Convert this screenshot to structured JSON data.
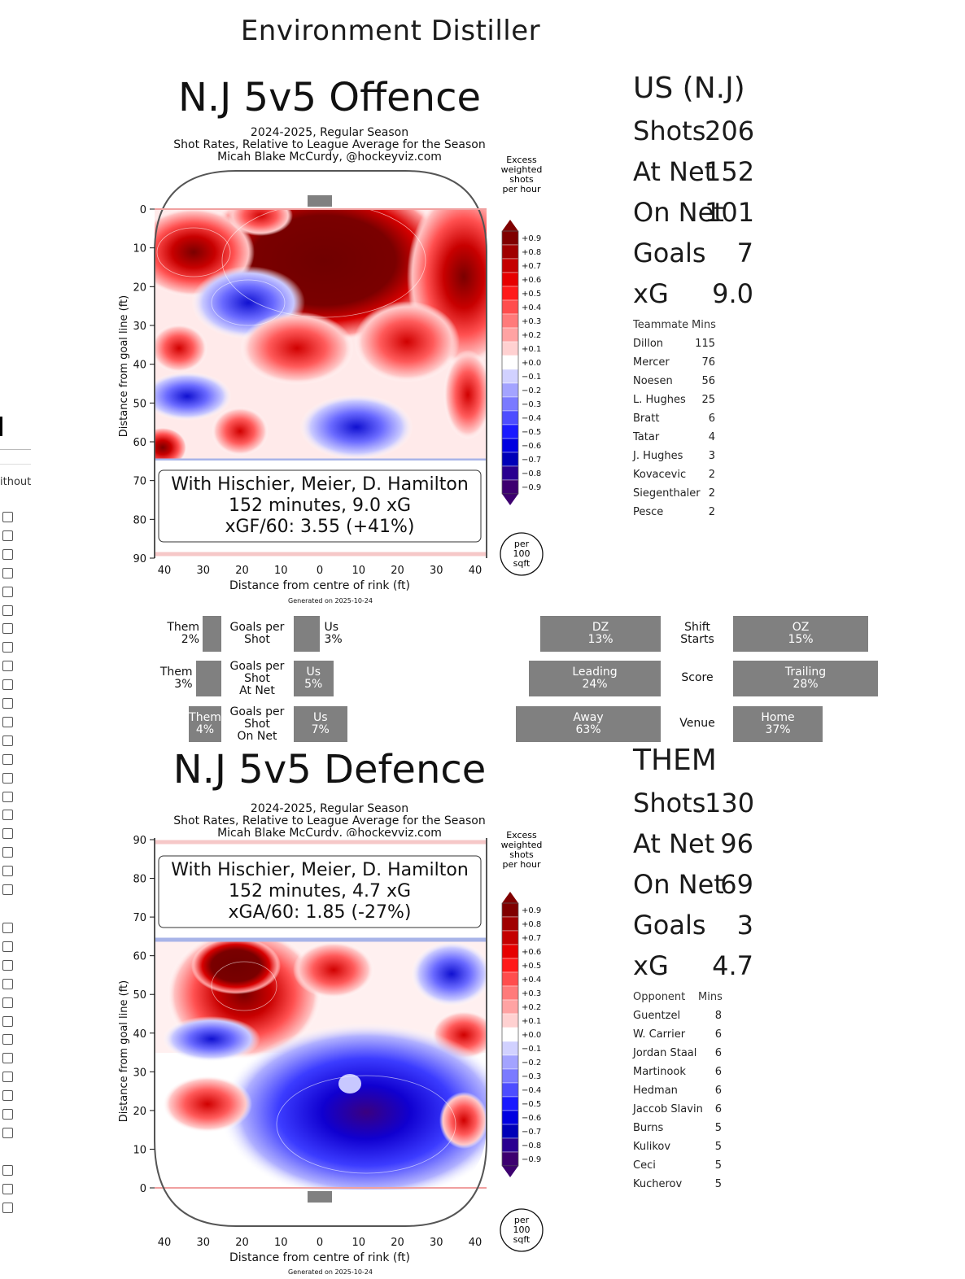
{
  "app": {
    "title": "Environment Distiller"
  },
  "sidebar": {
    "without_label": "ithout"
  },
  "offence": {
    "heading": "N.J 5v5 Offence",
    "subtitle": [
      "2024-2025, Regular Season",
      "Shot Rates, Relative to League Average for the Season",
      "Micah Blake McCurdy, @hockeyviz.com"
    ],
    "ylabel": "Distance from goal line (ft)",
    "xlabel": "Distance from centre of rink (ft)",
    "generated": "Generated on 2025-10-24",
    "info_lines": [
      "With Hischier, Meier, D. Hamilton",
      "152 minutes, 9.0 xG",
      "xGF/60: 3.55 (+41%)"
    ],
    "yticks": [
      "0",
      "10",
      "20",
      "30",
      "40",
      "50",
      "60",
      "70",
      "80",
      "90"
    ],
    "xticks": [
      "40",
      "30",
      "20",
      "10",
      "0",
      "10",
      "20",
      "30",
      "40"
    ]
  },
  "defence": {
    "heading": "N.J 5v5 Defence",
    "subtitle": [
      "2024-2025, Regular Season",
      "Shot Rates, Relative to League Average for the Season",
      "Micah Blake McCurdy, @hockeyviz.com"
    ],
    "ylabel": "Distance from goal line (ft)",
    "xlabel": "Distance from centre of rink (ft)",
    "generated": "Generated on 2025-10-24",
    "info_lines": [
      "With Hischier, Meier, D. Hamilton",
      "152 minutes, 4.7 xG",
      "xGA/60: 1.85 (-27%)"
    ],
    "yticks": [
      "90",
      "80",
      "70",
      "60",
      "50",
      "40",
      "30",
      "20",
      "10",
      "0"
    ],
    "xticks": [
      "40",
      "30",
      "20",
      "10",
      "0",
      "10",
      "20",
      "30",
      "40"
    ]
  },
  "colorbar": {
    "title": [
      "Excess",
      "weighted",
      "shots",
      "per hour"
    ],
    "ticks": [
      "+0.9",
      "+0.8",
      "+0.7",
      "+0.6",
      "+0.5",
      "+0.4",
      "+0.3",
      "+0.2",
      "+0.1",
      "+0.0",
      "−0.1",
      "−0.2",
      "−0.3",
      "−0.4",
      "−0.5",
      "−0.6",
      "−0.7",
      "−0.8",
      "−0.9"
    ],
    "colors": [
      "#800000",
      "#a00000",
      "#c40000",
      "#e60000",
      "#ff1a1a",
      "#ff4d4d",
      "#ff7a7a",
      "#ffa3a3",
      "#ffd1d1",
      "#ffffff",
      "#d1d1ff",
      "#a3a3ff",
      "#7a7aff",
      "#4d4dff",
      "#1a1aff",
      "#0000e0",
      "#0000b8",
      "#2a0090",
      "#3d0070"
    ],
    "unit": [
      "per",
      "100",
      "sqft"
    ]
  },
  "us": {
    "heading": "US (N.J)",
    "stats": [
      {
        "label": "Shots",
        "value": "206"
      },
      {
        "label": "At Net",
        "value": "152"
      },
      {
        "label": "On Net",
        "value": "101"
      },
      {
        "label": "Goals",
        "value": "7"
      },
      {
        "label": "xG",
        "value": "9.0"
      }
    ],
    "table_head": {
      "name": "Teammate",
      "mins": "Mins"
    },
    "rows": [
      {
        "name": "Dillon",
        "mins": "115"
      },
      {
        "name": "Mercer",
        "mins": "76"
      },
      {
        "name": "Noesen",
        "mins": "56"
      },
      {
        "name": "L. Hughes",
        "mins": "25"
      },
      {
        "name": "Bratt",
        "mins": "6"
      },
      {
        "name": "Tatar",
        "mins": "4"
      },
      {
        "name": "J. Hughes",
        "mins": "3"
      },
      {
        "name": "Kovacevic",
        "mins": "2"
      },
      {
        "name": "Siegenthaler",
        "mins": "2"
      },
      {
        "name": "Pesce",
        "mins": "2"
      }
    ]
  },
  "them": {
    "heading": "THEM",
    "stats": [
      {
        "label": "Shots",
        "value": "130"
      },
      {
        "label": "At Net",
        "value": "96"
      },
      {
        "label": "On Net",
        "value": "69"
      },
      {
        "label": "Goals",
        "value": "3"
      },
      {
        "label": "xG",
        "value": "4.7"
      }
    ],
    "table_head": {
      "name": "Opponent",
      "mins": "Mins"
    },
    "rows": [
      {
        "name": "Guentzel",
        "mins": "8"
      },
      {
        "name": "W. Carrier",
        "mins": "6"
      },
      {
        "name": "Jordan Staal",
        "mins": "6"
      },
      {
        "name": "Martinook",
        "mins": "6"
      },
      {
        "name": "Hedman",
        "mins": "6"
      },
      {
        "name": "Jaccob Slavin",
        "mins": "6"
      },
      {
        "name": "Burns",
        "mins": "5"
      },
      {
        "name": "Kulikov",
        "mins": "5"
      },
      {
        "name": "Ceci",
        "mins": "5"
      },
      {
        "name": "Kucherov",
        "mins": "5"
      }
    ]
  },
  "shooting": [
    {
      "label": "Goals per\nShot",
      "them": "Them\n2%",
      "us": "Us\n3%",
      "them_pct": 2,
      "us_pct": 3
    },
    {
      "label": "Goals per\nShot\nAt Net",
      "them": "Them\n3%",
      "us": "Us\n5%",
      "them_pct": 3,
      "us_pct": 5
    },
    {
      "label": "Goals per\nShot\nOn Net",
      "them": "Them\n4%",
      "us": "Us\n7%",
      "them_pct": 4,
      "us_pct": 7
    }
  ],
  "situations": [
    {
      "label": "Shift\nStarts",
      "left": "DZ\n13%",
      "right": "OZ\n15%",
      "left_pct": 13,
      "right_pct": 15
    },
    {
      "label": "Score",
      "left": "Leading\n24%",
      "right": "Trailing\n28%",
      "left_pct": 24,
      "right_pct": 28
    },
    {
      "label": "Venue",
      "left": "Away\n63%",
      "right": "Home\n37%",
      "left_pct": 63,
      "right_pct": 37
    }
  ]
}
